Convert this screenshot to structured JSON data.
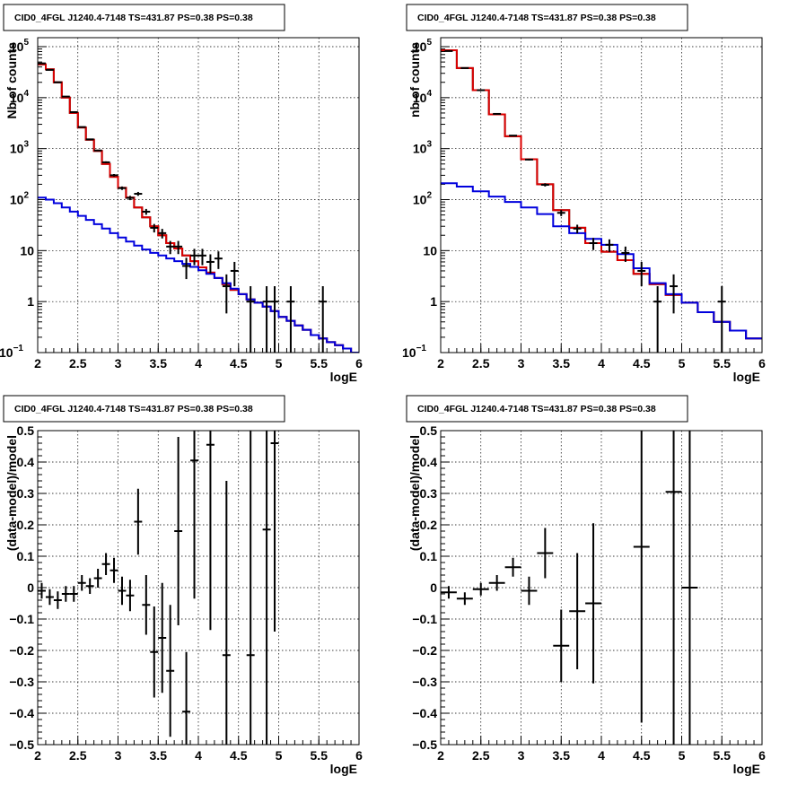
{
  "chart_data": [
    {
      "type": "line",
      "title": "CID0_4FGL J1240.4-7148 TS=431.87 PS=0.38 PS=0.38",
      "xlabel": "logE",
      "ylabel": "Nb of counts",
      "xlim": [
        2,
        6
      ],
      "ylim": [
        0.1,
        150000
      ],
      "yscale": "log",
      "grid": true,
      "xticks": [
        "2",
        "2.5",
        "3",
        "3.5",
        "4",
        "4.5",
        "5",
        "5.5",
        "6"
      ],
      "yticks": [
        {
          "v": 0.1,
          "mant": "10",
          "exp": "−1"
        },
        {
          "v": 1,
          "mant": "1",
          "exp": ""
        },
        {
          "v": 10,
          "mant": "10",
          "exp": ""
        },
        {
          "v": 100,
          "mant": "10",
          "exp": "2"
        },
        {
          "v": 1000,
          "mant": "10",
          "exp": "3"
        },
        {
          "v": 10000,
          "mant": "10",
          "exp": "4"
        },
        {
          "v": 100000,
          "mant": "10",
          "exp": "5"
        }
      ],
      "series": [
        {
          "kind": "step",
          "color": "#000000",
          "edges": [
            2,
            2.1,
            2.2,
            2.3,
            2.4,
            2.5,
            2.6,
            2.7,
            2.8,
            2.9,
            3.0,
            3.1,
            3.2,
            3.3,
            3.4,
            3.5,
            3.6,
            3.7,
            3.8,
            3.9,
            4.0,
            4.1,
            4.2,
            4.3,
            4.4,
            4.5,
            4.6,
            4.7,
            4.8,
            4.9,
            5.0,
            5.1,
            5.2,
            5.3,
            5.4,
            5.5,
            5.6,
            5.7,
            5.8,
            5.9,
            6.0
          ],
          "values": [
            45000,
            36000,
            20000,
            10000,
            5000,
            2600,
            1500,
            900,
            500,
            280,
            170,
            110,
            70,
            45,
            30,
            20,
            14,
            11,
            8,
            6.2,
            4.7,
            3.7,
            2.9,
            2.2,
            1.7,
            1.4,
            1.1,
            0.95,
            0.8,
            0.65,
            0.5,
            0.42,
            0.34,
            0.28,
            0.22,
            0.19,
            0.16,
            0.14,
            0.12,
            0.1
          ]
        },
        {
          "kind": "step",
          "color": "#dd0000",
          "edges": [
            2,
            2.1,
            2.2,
            2.3,
            2.4,
            2.5,
            2.6,
            2.7,
            2.8,
            2.9,
            3.0,
            3.1,
            3.2,
            3.3,
            3.4,
            3.5,
            3.6,
            3.7,
            3.8,
            3.9,
            4.0,
            4.1,
            4.2,
            4.3,
            4.4,
            4.5,
            4.6,
            4.7,
            4.8,
            4.9,
            5.0,
            5.1,
            5.2,
            5.3,
            5.4,
            5.5,
            5.6,
            5.7,
            5.8,
            5.9,
            6.0
          ],
          "values": [
            45000,
            36000,
            20000,
            10000,
            5000,
            2600,
            1500,
            900,
            500,
            280,
            170,
            110,
            70,
            45,
            30,
            20,
            14,
            11,
            8,
            6.2,
            4.7,
            3.7,
            2.9,
            2.2,
            1.7,
            1.4,
            1.1,
            0.95,
            0.8,
            0.65,
            0.5,
            0.42,
            0.34,
            0.28,
            0.22,
            0.19,
            0.16,
            0.14,
            0.12,
            0.1
          ]
        },
        {
          "kind": "step",
          "color": "#0000dd",
          "edges": [
            2,
            2.1,
            2.2,
            2.3,
            2.4,
            2.5,
            2.6,
            2.7,
            2.8,
            2.9,
            3.0,
            3.1,
            3.2,
            3.3,
            3.4,
            3.5,
            3.6,
            3.7,
            3.8,
            3.9,
            4.0,
            4.1,
            4.2,
            4.3,
            4.4,
            4.5,
            4.6,
            4.7,
            4.8,
            4.9,
            5.0,
            5.1,
            5.2,
            5.3,
            5.4,
            5.5,
            5.6,
            5.7,
            5.8,
            5.9,
            6.0
          ],
          "values": [
            110,
            100,
            85,
            70,
            58,
            48,
            40,
            33,
            27,
            22,
            18,
            15,
            12.5,
            10.5,
            9,
            8,
            7,
            6.2,
            5.5,
            4.8,
            4.1,
            3.5,
            2.9,
            2.3,
            1.8,
            1.4,
            1.1,
            0.95,
            0.8,
            0.65,
            0.5,
            0.42,
            0.34,
            0.28,
            0.22,
            0.19,
            0.16,
            0.14,
            0.12,
            0.1
          ]
        },
        {
          "kind": "points",
          "color": "#000000",
          "points": [
            {
              "x": 2.05,
              "y": 47000
            },
            {
              "x": 2.15,
              "y": 35000
            },
            {
              "x": 2.25,
              "y": 20000
            },
            {
              "x": 2.35,
              "y": 10500
            },
            {
              "x": 2.45,
              "y": 5200
            },
            {
              "x": 2.55,
              "y": 2650
            },
            {
              "x": 2.65,
              "y": 1520
            },
            {
              "x": 2.75,
              "y": 920
            },
            {
              "x": 2.85,
              "y": 540
            },
            {
              "x": 2.95,
              "y": 300
            },
            {
              "x": 3.05,
              "y": 168
            },
            {
              "x": 3.15,
              "y": 108
            },
            {
              "x": 3.25,
              "y": 130
            },
            {
              "x": 3.35,
              "y": 58
            },
            {
              "x": 3.45,
              "y": 28
            },
            {
              "x": 3.55,
              "y": 22
            },
            {
              "x": 3.65,
              "y": 12
            },
            {
              "x": 3.75,
              "y": 12
            },
            {
              "x": 3.85,
              "y": 5
            },
            {
              "x": 3.95,
              "y": 8
            },
            {
              "x": 4.05,
              "y": 8
            },
            {
              "x": 4.15,
              "y": 6
            },
            {
              "x": 4.25,
              "y": 7
            },
            {
              "x": 4.35,
              "y": 2
            },
            {
              "x": 4.45,
              "y": 4
            },
            {
              "x": 4.65,
              "y": 1
            },
            {
              "x": 4.85,
              "y": 1
            },
            {
              "x": 4.95,
              "y": 1
            },
            {
              "x": 5.15,
              "y": 1
            },
            {
              "x": 5.55,
              "y": 1
            }
          ]
        }
      ]
    },
    {
      "type": "line",
      "title": "CID0_4FGL J1240.4-7148 TS=431.87 PS=0.38 PS=0.38",
      "xlabel": "logE",
      "ylabel": "nb of counts",
      "xlim": [
        2,
        6
      ],
      "ylim": [
        0.1,
        150000
      ],
      "yscale": "log",
      "grid": true,
      "xticks": [
        "2",
        "2.5",
        "3",
        "3.5",
        "4",
        "4.5",
        "5",
        "5.5",
        "6"
      ],
      "yticks": [
        {
          "v": 0.1,
          "mant": "10",
          "exp": "−1"
        },
        {
          "v": 1,
          "mant": "1",
          "exp": ""
        },
        {
          "v": 10,
          "mant": "10",
          "exp": ""
        },
        {
          "v": 100,
          "mant": "10",
          "exp": "2"
        },
        {
          "v": 1000,
          "mant": "10",
          "exp": "3"
        },
        {
          "v": 10000,
          "mant": "10",
          "exp": "4"
        },
        {
          "v": 100000,
          "mant": "10",
          "exp": "5"
        }
      ],
      "series": [
        {
          "kind": "step",
          "color": "#000000",
          "edges": [
            2,
            2.2,
            2.4,
            2.6,
            2.8,
            3.0,
            3.2,
            3.4,
            3.6,
            3.8,
            4.0,
            4.2,
            4.4,
            4.6,
            4.8,
            5.0,
            5.2,
            5.4,
            5.6,
            5.8,
            6.0
          ],
          "values": [
            85000,
            38000,
            14000,
            4700,
            1750,
            620,
            200,
            62,
            28,
            14,
            9.5,
            6.5,
            3.5,
            2.2,
            1.35,
            0.95,
            0.62,
            0.4,
            0.27,
            0.19
          ]
        },
        {
          "kind": "step",
          "color": "#dd0000",
          "edges": [
            2,
            2.2,
            2.4,
            2.6,
            2.8,
            3.0,
            3.2,
            3.4,
            3.6,
            3.8,
            4.0,
            4.2,
            4.4,
            4.6,
            4.8,
            5.0,
            5.2,
            5.4,
            5.6,
            5.8,
            6.0
          ],
          "values": [
            85000,
            38000,
            14000,
            4700,
            1750,
            620,
            200,
            62,
            28,
            14,
            9.5,
            6.5,
            3.5,
            2.2,
            1.35,
            0.95,
            0.62,
            0.4,
            0.27,
            0.19
          ]
        },
        {
          "kind": "step",
          "color": "#0000dd",
          "edges": [
            2,
            2.2,
            2.4,
            2.6,
            2.8,
            3.0,
            3.2,
            3.4,
            3.6,
            3.8,
            4.0,
            4.2,
            4.4,
            4.6,
            4.8,
            5.0,
            5.2,
            5.4,
            5.6,
            5.8,
            6.0
          ],
          "values": [
            210,
            180,
            145,
            115,
            90,
            70,
            52,
            30,
            22,
            17,
            13,
            8.5,
            4.5,
            2.3,
            1.4,
            0.95,
            0.62,
            0.4,
            0.27,
            0.19
          ]
        },
        {
          "kind": "points",
          "color": "#000000",
          "points": [
            {
              "x": 2.1,
              "y": 82000
            },
            {
              "x": 2.3,
              "y": 38000
            },
            {
              "x": 2.5,
              "y": 14000
            },
            {
              "x": 2.7,
              "y": 4800
            },
            {
              "x": 2.9,
              "y": 1800
            },
            {
              "x": 3.1,
              "y": 610
            },
            {
              "x": 3.3,
              "y": 195
            },
            {
              "x": 3.5,
              "y": 55
            },
            {
              "x": 3.7,
              "y": 27
            },
            {
              "x": 3.9,
              "y": 14
            },
            {
              "x": 4.1,
              "y": 13
            },
            {
              "x": 4.3,
              "y": 9
            },
            {
              "x": 4.5,
              "y": 4
            },
            {
              "x": 4.7,
              "y": 1
            },
            {
              "x": 4.9,
              "y": 2
            },
            {
              "x": 5.5,
              "y": 1
            }
          ]
        }
      ]
    },
    {
      "type": "scatter",
      "title": "CID0_4FGL J1240.4-7148 TS=431.87 PS=0.38 PS=0.38",
      "xlabel": "logE",
      "ylabel": "(data-model)/model",
      "xlim": [
        2,
        6
      ],
      "ylim": [
        -0.5,
        0.5
      ],
      "yscale": "linear",
      "grid": true,
      "xticks": [
        "2",
        "2.5",
        "3",
        "3.5",
        "4",
        "4.5",
        "5",
        "5.5",
        "6"
      ],
      "yticks": [
        {
          "v": -0.5,
          "label": "−0.5"
        },
        {
          "v": -0.4,
          "label": "−0.4"
        },
        {
          "v": -0.3,
          "label": "−0.3"
        },
        {
          "v": -0.2,
          "label": "−0.2"
        },
        {
          "v": -0.1,
          "label": "−0.1"
        },
        {
          "v": 0,
          "label": "0"
        },
        {
          "v": 0.1,
          "label": "0.1"
        },
        {
          "v": 0.2,
          "label": "0.2"
        },
        {
          "v": 0.3,
          "label": "0.3"
        },
        {
          "v": 0.4,
          "label": "0.4"
        },
        {
          "v": 0.5,
          "label": "0.5"
        }
      ],
      "series": [
        {
          "kind": "points",
          "color": "#000000",
          "xerr": 0.05,
          "points": [
            {
              "x": 2.05,
              "y": -0.01,
              "err": 0.025
            },
            {
              "x": 2.15,
              "y": -0.03,
              "err": 0.025
            },
            {
              "x": 2.25,
              "y": -0.04,
              "err": 0.028
            },
            {
              "x": 2.35,
              "y": -0.02,
              "err": 0.025
            },
            {
              "x": 2.45,
              "y": -0.02,
              "err": 0.025
            },
            {
              "x": 2.55,
              "y": 0.015,
              "err": 0.025
            },
            {
              "x": 2.65,
              "y": 0.005,
              "err": 0.025
            },
            {
              "x": 2.75,
              "y": 0.03,
              "err": 0.03
            },
            {
              "x": 2.85,
              "y": 0.075,
              "err": 0.035
            },
            {
              "x": 2.95,
              "y": 0.055,
              "err": 0.04
            },
            {
              "x": 3.05,
              "y": -0.01,
              "err": 0.045
            },
            {
              "x": 3.15,
              "y": -0.025,
              "err": 0.05
            },
            {
              "x": 3.25,
              "y": 0.21,
              "err": 0.105
            },
            {
              "x": 3.35,
              "y": -0.055,
              "err": 0.095
            },
            {
              "x": 3.45,
              "y": -0.205,
              "err": 0.145
            },
            {
              "x": 3.55,
              "y": -0.16,
              "err": 0.175
            },
            {
              "x": 3.65,
              "y": -0.265,
              "err": 0.21
            },
            {
              "x": 3.75,
              "y": 0.18,
              "err": 0.3
            },
            {
              "x": 3.85,
              "y": -0.395,
              "err": 0.19
            },
            {
              "x": 3.95,
              "y": 0.405,
              "err": 0.44
            },
            {
              "x": 4.15,
              "y": 0.455,
              "err": 0.59
            },
            {
              "x": 4.35,
              "y": -0.215,
              "err": 0.555
            },
            {
              "x": 4.65,
              "y": -0.215,
              "err": 0.8
            },
            {
              "x": 4.85,
              "y": 0.185,
              "err": 1.0
            },
            {
              "x": 4.95,
              "y": 0.46,
              "err": 0.6
            }
          ]
        }
      ]
    },
    {
      "type": "scatter",
      "title": "CID0_4FGL J1240.4-7148 TS=431.87 PS=0.38 PS=0.38",
      "xlabel": "logE",
      "ylabel": "(data-model)/model",
      "xlim": [
        2,
        6
      ],
      "ylim": [
        -0.5,
        0.5
      ],
      "yscale": "linear",
      "grid": true,
      "xticks": [
        "2",
        "2.5",
        "3",
        "3.5",
        "4",
        "4.5",
        "5",
        "5.5",
        "6"
      ],
      "yticks": [
        {
          "v": -0.5,
          "label": "−0.5"
        },
        {
          "v": -0.4,
          "label": "−0.4"
        },
        {
          "v": -0.3,
          "label": "−0.3"
        },
        {
          "v": -0.2,
          "label": "−0.2"
        },
        {
          "v": -0.1,
          "label": "−0.1"
        },
        {
          "v": 0,
          "label": "0"
        },
        {
          "v": 0.1,
          "label": "0.1"
        },
        {
          "v": 0.2,
          "label": "0.2"
        },
        {
          "v": 0.3,
          "label": "0.3"
        },
        {
          "v": 0.4,
          "label": "0.4"
        },
        {
          "v": 0.5,
          "label": "0.5"
        }
      ],
      "series": [
        {
          "kind": "points",
          "color": "#000000",
          "xerr": 0.1,
          "points": [
            {
              "x": 2.1,
              "y": -0.015,
              "err": 0.02
            },
            {
              "x": 2.3,
              "y": -0.035,
              "err": 0.02
            },
            {
              "x": 2.5,
              "y": -0.005,
              "err": 0.02
            },
            {
              "x": 2.7,
              "y": 0.015,
              "err": 0.025
            },
            {
              "x": 2.9,
              "y": 0.065,
              "err": 0.03
            },
            {
              "x": 3.1,
              "y": -0.01,
              "err": 0.045
            },
            {
              "x": 3.3,
              "y": 0.11,
              "err": 0.08
            },
            {
              "x": 3.5,
              "y": -0.185,
              "err": 0.115
            },
            {
              "x": 3.7,
              "y": -0.075,
              "err": 0.185
            },
            {
              "x": 3.9,
              "y": -0.05,
              "err": 0.255
            },
            {
              "x": 4.5,
              "y": 0.13,
              "err": 0.56
            },
            {
              "x": 4.9,
              "y": 0.305,
              "err": 0.9
            },
            {
              "x": 5.1,
              "y": 0.0,
              "err": 0.8
            }
          ]
        }
      ]
    }
  ]
}
